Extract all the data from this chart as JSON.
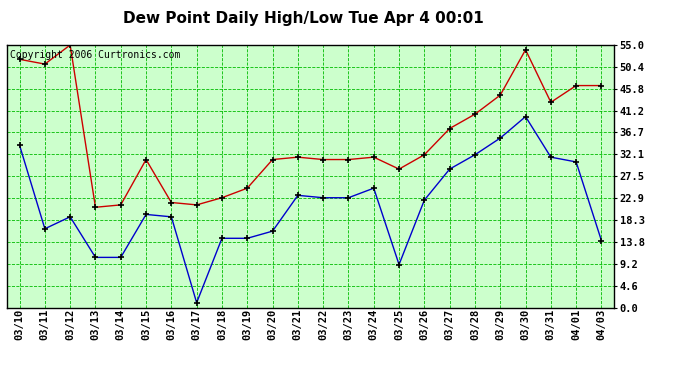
{
  "title": "Dew Point Daily High/Low Tue Apr 4 00:01",
  "copyright": "Copyright 2006 Curtronics.com",
  "x_labels": [
    "03/10",
    "03/11",
    "03/12",
    "03/13",
    "03/14",
    "03/15",
    "03/16",
    "03/17",
    "03/18",
    "03/19",
    "03/20",
    "03/21",
    "03/22",
    "03/23",
    "03/24",
    "03/25",
    "03/26",
    "03/27",
    "03/28",
    "03/29",
    "03/30",
    "03/31",
    "04/01",
    "04/03"
  ],
  "red_high": [
    52.0,
    51.0,
    55.0,
    21.0,
    21.5,
    31.0,
    22.0,
    21.5,
    23.0,
    25.0,
    31.0,
    31.5,
    31.0,
    31.0,
    31.5,
    29.0,
    32.0,
    37.5,
    40.5,
    44.5,
    54.0,
    43.0,
    46.5,
    46.5
  ],
  "blue_low": [
    34.0,
    16.5,
    19.0,
    10.5,
    10.5,
    19.5,
    19.0,
    1.0,
    14.5,
    14.5,
    16.0,
    23.5,
    23.0,
    23.0,
    25.0,
    9.0,
    22.5,
    29.0,
    32.0,
    35.5,
    40.0,
    31.5,
    30.5,
    14.0
  ],
  "y_ticks": [
    0.0,
    4.6,
    9.2,
    13.8,
    18.3,
    22.9,
    27.5,
    32.1,
    36.7,
    41.2,
    45.8,
    50.4,
    55.0
  ],
  "ylim": [
    0.0,
    55.0
  ],
  "bg_color": "#ffffff",
  "plot_bg": "#ccffcc",
  "grid_color": "#00bb00",
  "red_color": "#cc0000",
  "blue_color": "#0000cc",
  "title_fontsize": 11,
  "copyright_fontsize": 7,
  "tick_fontsize": 7.5
}
